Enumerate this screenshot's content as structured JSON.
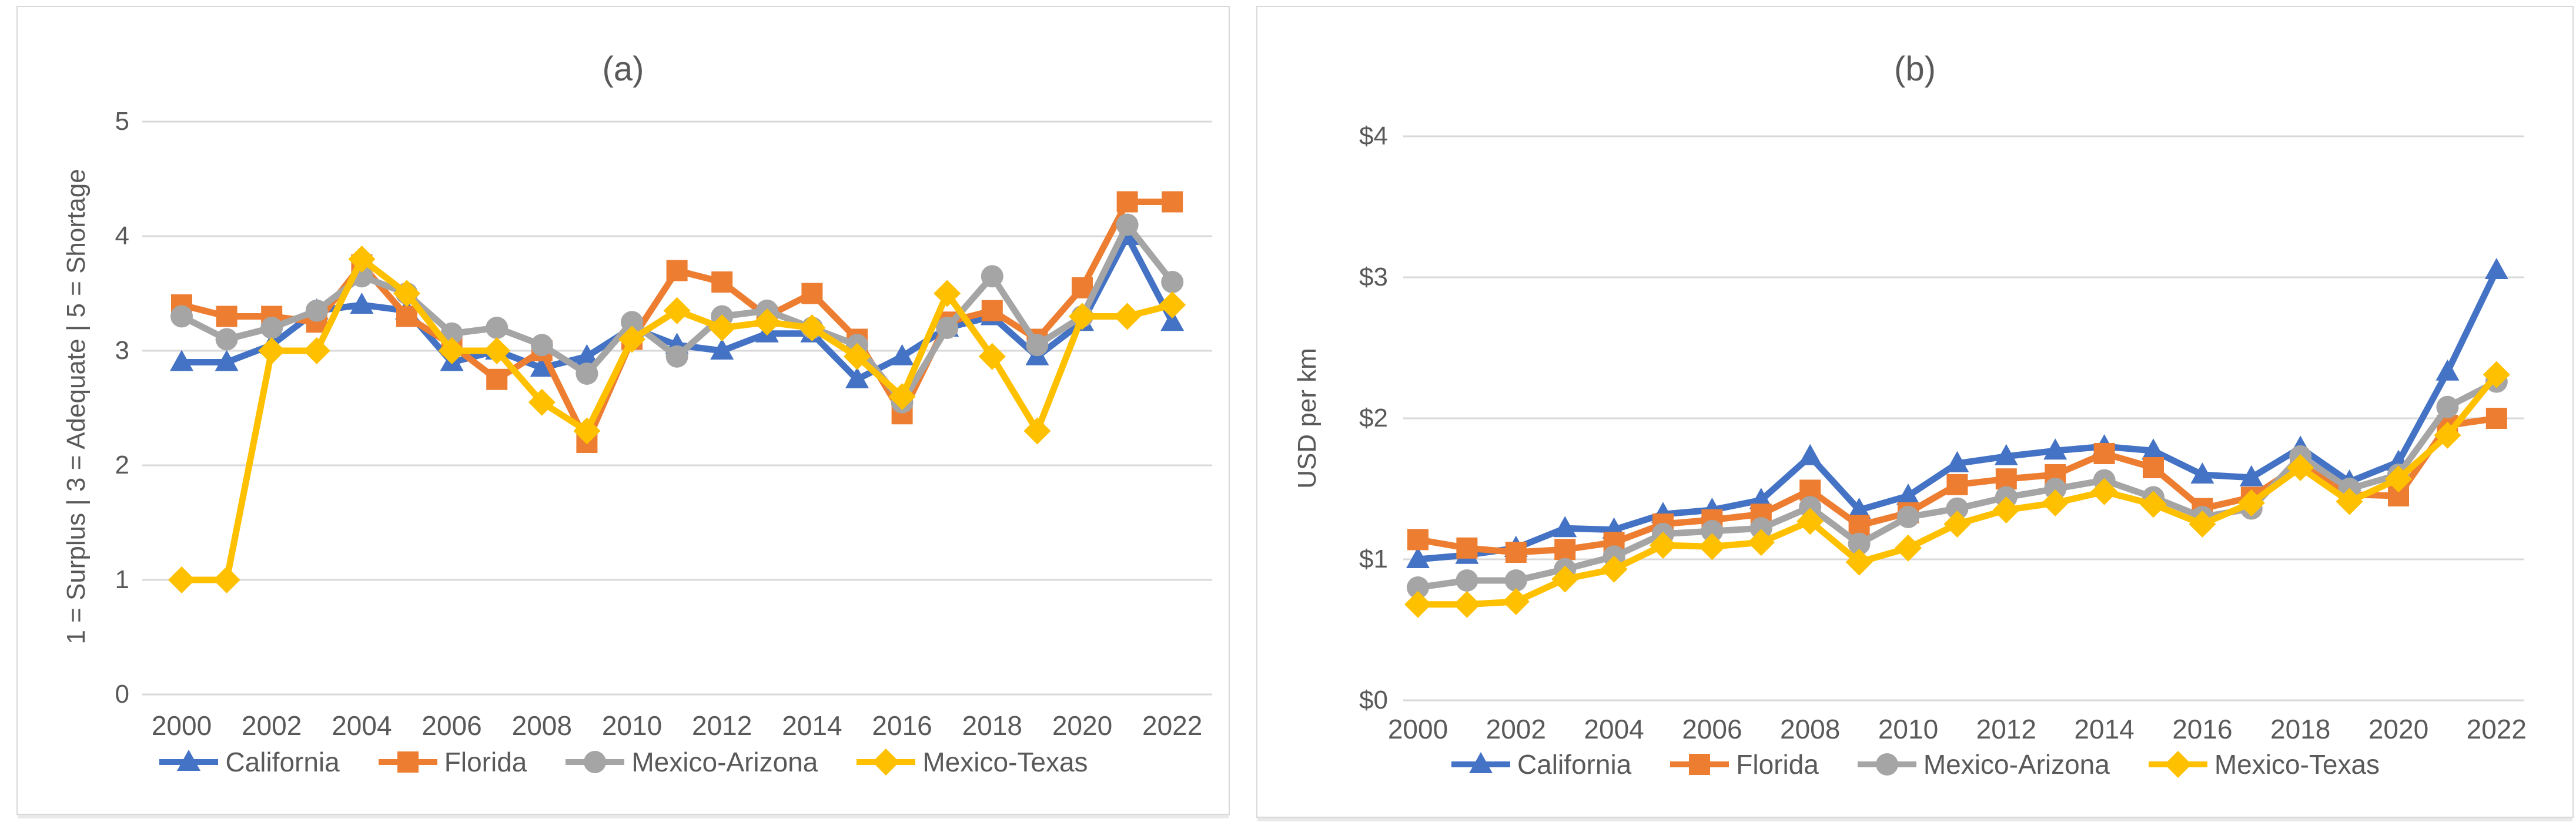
{
  "figure": {
    "panel_a_label": "(a)",
    "panel_b_label": "(b)"
  },
  "colors": {
    "california": "#4472C4",
    "florida": "#ED7D31",
    "mexico_arizona": "#A5A5A5",
    "mexico_texas": "#FFC000",
    "gridline": "#D9D9D9",
    "text": "#595959",
    "panel_border": "#D9D9D9",
    "background": "#FFFFFF"
  },
  "chart_data": [
    {
      "type": "line",
      "title": "(a)",
      "xlabel": "",
      "ylabel": "1 = Surplus | 3 = Adequate | 5 = Shortage",
      "grid": true,
      "legend_position": "bottom",
      "ylim": [
        0,
        5
      ],
      "y_ticks": [
        0,
        1,
        2,
        3,
        4,
        5
      ],
      "y_tick_labels": [
        "0",
        "1",
        "2",
        "3",
        "4",
        "5"
      ],
      "x": [
        2000,
        2001,
        2002,
        2003,
        2004,
        2005,
        2006,
        2007,
        2008,
        2009,
        2010,
        2011,
        2012,
        2013,
        2014,
        2015,
        2016,
        2017,
        2018,
        2019,
        2020,
        2021,
        2022
      ],
      "x_tick_labels": [
        "2000",
        "2002",
        "2004",
        "2006",
        "2008",
        "2010",
        "2012",
        "2014",
        "2016",
        "2018",
        "2020",
        "2022"
      ],
      "series": [
        {
          "name": "California",
          "color": "#4472C4",
          "marker": "triangle",
          "values": [
            2.9,
            2.9,
            3.05,
            3.35,
            3.4,
            3.35,
            2.9,
            3.0,
            2.85,
            2.95,
            3.2,
            3.05,
            3.0,
            3.15,
            3.15,
            2.75,
            2.95,
            3.2,
            3.3,
            2.95,
            3.25,
            4.0,
            3.25
          ]
        },
        {
          "name": "Florida",
          "color": "#ED7D31",
          "marker": "square",
          "values": [
            3.4,
            3.3,
            3.3,
            3.25,
            3.75,
            3.3,
            3.05,
            2.75,
            3.0,
            2.2,
            3.1,
            3.7,
            3.6,
            3.3,
            3.5,
            3.1,
            2.45,
            3.25,
            3.35,
            3.1,
            3.55,
            4.3,
            4.3
          ]
        },
        {
          "name": "Mexico-Arizona",
          "color": "#A5A5A5",
          "marker": "circle",
          "values": [
            3.3,
            3.1,
            3.2,
            3.35,
            3.65,
            3.5,
            3.15,
            3.2,
            3.05,
            2.8,
            3.25,
            2.95,
            3.3,
            3.35,
            3.2,
            3.05,
            2.55,
            3.2,
            3.65,
            3.05,
            3.3,
            4.1,
            3.6
          ]
        },
        {
          "name": "Mexico-Texas",
          "color": "#FFC000",
          "marker": "diamond",
          "values": [
            1.0,
            1.0,
            3.0,
            3.0,
            3.8,
            3.5,
            3.0,
            3.0,
            2.55,
            2.3,
            3.1,
            3.35,
            3.2,
            3.25,
            3.2,
            2.95,
            2.6,
            3.5,
            2.95,
            2.3,
            3.3,
            3.3,
            3.4
          ]
        }
      ]
    },
    {
      "type": "line",
      "title": "(b)",
      "xlabel": "",
      "ylabel": "USD per km",
      "grid": true,
      "legend_position": "bottom",
      "ylim": [
        0,
        4
      ],
      "y_ticks": [
        0,
        1,
        2,
        3,
        4
      ],
      "y_tick_labels": [
        "$0",
        "$1",
        "$2",
        "$3",
        "$4"
      ],
      "x": [
        2000,
        2001,
        2002,
        2003,
        2004,
        2005,
        2006,
        2007,
        2008,
        2009,
        2010,
        2011,
        2012,
        2013,
        2014,
        2015,
        2016,
        2017,
        2018,
        2019,
        2020,
        2021,
        2022
      ],
      "x_tick_labels": [
        "2000",
        "2002",
        "2004",
        "2006",
        "2008",
        "2010",
        "2012",
        "2014",
        "2016",
        "2018",
        "2020",
        "2022"
      ],
      "series": [
        {
          "name": "California",
          "color": "#4472C4",
          "marker": "triangle",
          "values": [
            1.0,
            1.03,
            1.08,
            1.22,
            1.21,
            1.32,
            1.35,
            1.42,
            1.73,
            1.35,
            1.45,
            1.68,
            1.73,
            1.77,
            1.8,
            1.77,
            1.6,
            1.58,
            1.79,
            1.55,
            1.69,
            2.33,
            3.05
          ]
        },
        {
          "name": "Florida",
          "color": "#ED7D31",
          "marker": "square",
          "values": [
            1.14,
            1.08,
            1.05,
            1.07,
            1.12,
            1.25,
            1.28,
            1.32,
            1.49,
            1.24,
            1.33,
            1.53,
            1.57,
            1.6,
            1.75,
            1.65,
            1.36,
            1.44,
            1.67,
            1.46,
            1.45,
            1.95,
            2.0
          ]
        },
        {
          "name": "Mexico-Arizona",
          "color": "#A5A5A5",
          "marker": "circle",
          "values": [
            0.8,
            0.85,
            0.85,
            0.93,
            1.02,
            1.18,
            1.2,
            1.22,
            1.37,
            1.11,
            1.3,
            1.36,
            1.44,
            1.5,
            1.56,
            1.44,
            1.3,
            1.36,
            1.73,
            1.5,
            1.6,
            2.08,
            2.26
          ]
        },
        {
          "name": "Mexico-Texas",
          "color": "#FFC000",
          "marker": "diamond",
          "values": [
            0.68,
            0.68,
            0.7,
            0.86,
            0.93,
            1.1,
            1.09,
            1.12,
            1.27,
            0.98,
            1.08,
            1.25,
            1.35,
            1.4,
            1.48,
            1.39,
            1.25,
            1.4,
            1.65,
            1.41,
            1.57,
            1.88,
            2.31
          ]
        }
      ]
    }
  ]
}
